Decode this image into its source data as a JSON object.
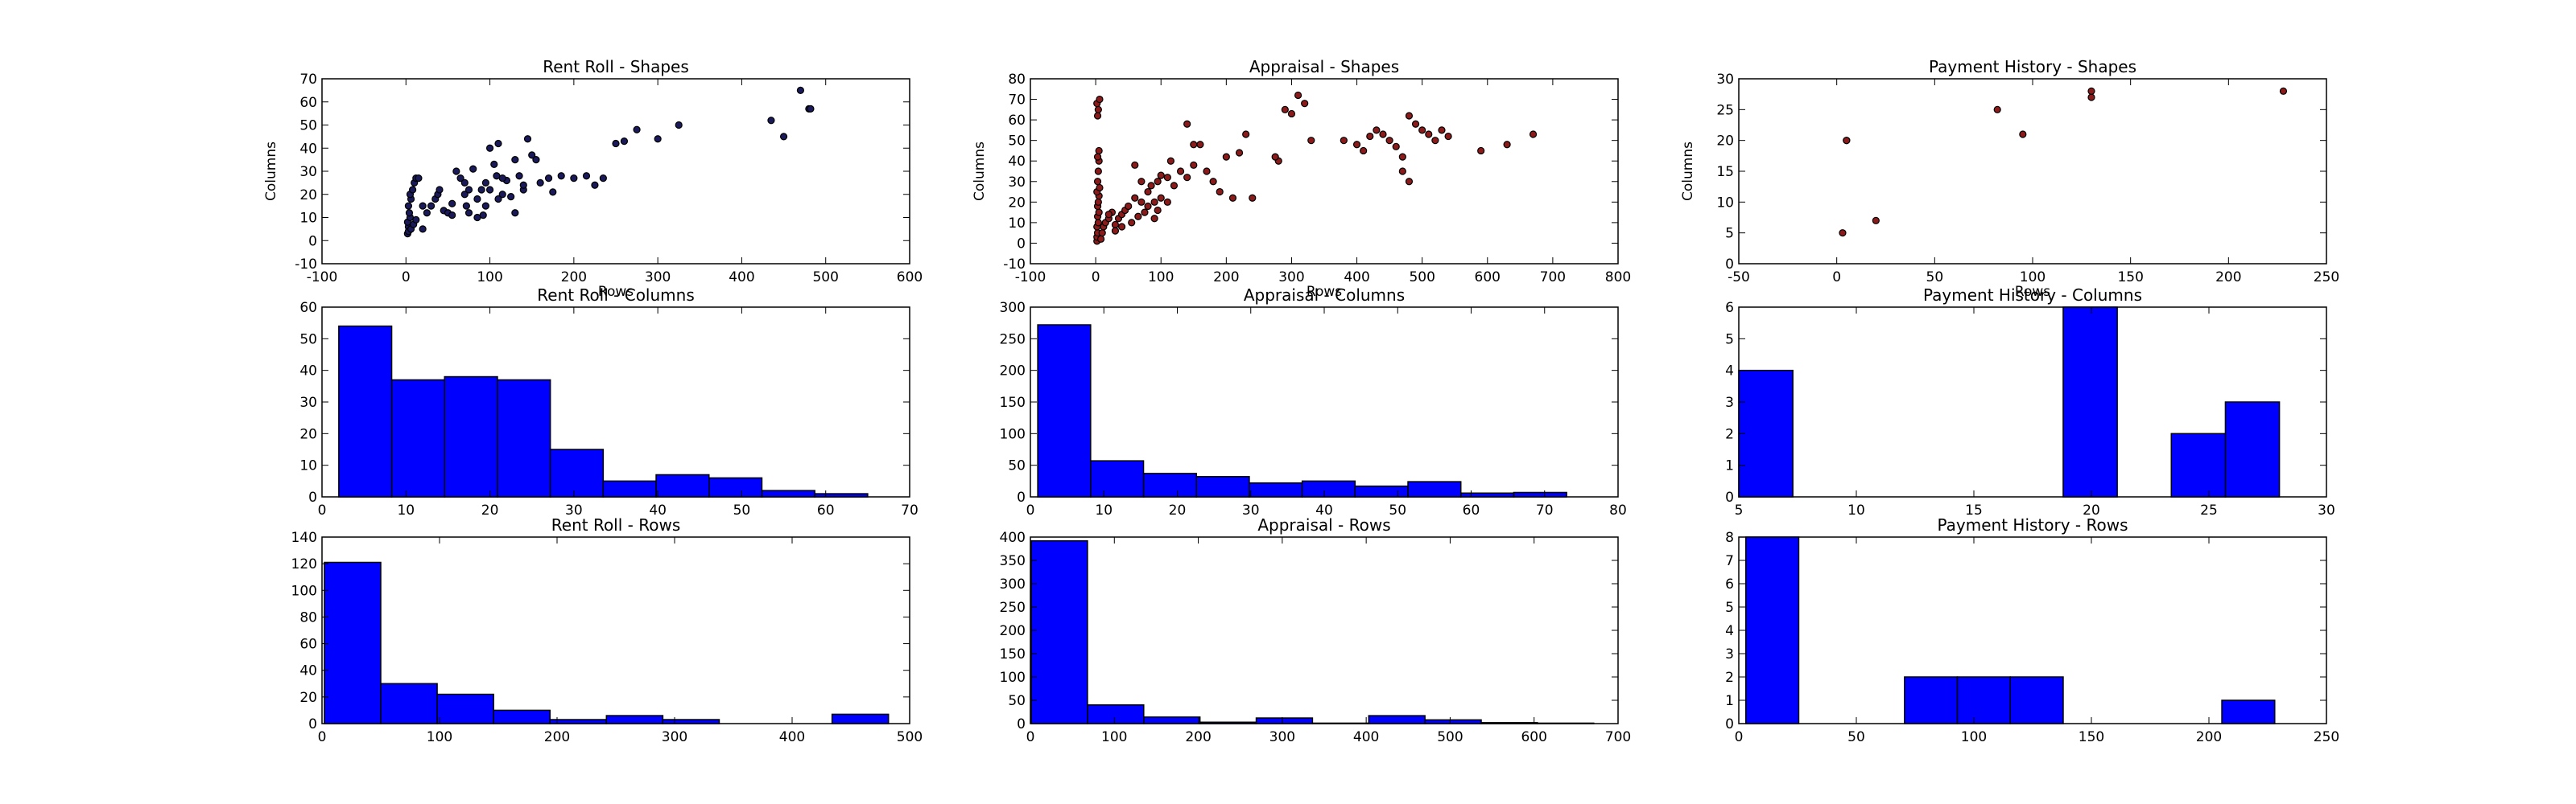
{
  "chart_data": [
    {
      "type": "scatter",
      "title": "Rent Roll - Shapes",
      "xlabel": "Rows",
      "ylabel": "Columns",
      "xlim": [
        -100,
        600
      ],
      "ylim": [
        -10,
        70
      ],
      "xticks": [
        -100,
        0,
        100,
        200,
        300,
        400,
        500,
        600
      ],
      "yticks": [
        -10,
        0,
        10,
        20,
        30,
        40,
        50,
        60,
        70
      ],
      "marker_color": "#1a1a5a",
      "points": [
        [
          2,
          3
        ],
        [
          3,
          6
        ],
        [
          2,
          8
        ],
        [
          5,
          10
        ],
        [
          4,
          12
        ],
        [
          3,
          15
        ],
        [
          6,
          18
        ],
        [
          5,
          20
        ],
        [
          8,
          22
        ],
        [
          10,
          25
        ],
        [
          12,
          27
        ],
        [
          15,
          27
        ],
        [
          3,
          4
        ],
        [
          6,
          5
        ],
        [
          9,
          7
        ],
        [
          12,
          9
        ],
        [
          20,
          5
        ],
        [
          25,
          12
        ],
        [
          30,
          15
        ],
        [
          35,
          18
        ],
        [
          38,
          20
        ],
        [
          45,
          13
        ],
        [
          50,
          12
        ],
        [
          55,
          11
        ],
        [
          60,
          30
        ],
        [
          65,
          27
        ],
        [
          70,
          20
        ],
        [
          72,
          15
        ],
        [
          75,
          22
        ],
        [
          80,
          31
        ],
        [
          85,
          18
        ],
        [
          90,
          22
        ],
        [
          95,
          25
        ],
        [
          100,
          40
        ],
        [
          105,
          33
        ],
        [
          108,
          28
        ],
        [
          110,
          42
        ],
        [
          115,
          20
        ],
        [
          120,
          26
        ],
        [
          130,
          35
        ],
        [
          135,
          28
        ],
        [
          140,
          22
        ],
        [
          145,
          44
        ],
        [
          150,
          37
        ],
        [
          155,
          35
        ],
        [
          160,
          25
        ],
        [
          170,
          27
        ],
        [
          175,
          21
        ],
        [
          185,
          28
        ],
        [
          200,
          27
        ],
        [
          215,
          28
        ],
        [
          225,
          24
        ],
        [
          235,
          27
        ],
        [
          250,
          42
        ],
        [
          260,
          43
        ],
        [
          275,
          48
        ],
        [
          300,
          44
        ],
        [
          325,
          50
        ],
        [
          435,
          52
        ],
        [
          450,
          45
        ],
        [
          470,
          65
        ],
        [
          480,
          57
        ],
        [
          482,
          57
        ],
        [
          130,
          12
        ],
        [
          140,
          24
        ],
        [
          95,
          15
        ],
        [
          85,
          10
        ],
        [
          75,
          12
        ],
        [
          70,
          25
        ],
        [
          100,
          22
        ],
        [
          115,
          27
        ],
        [
          125,
          19
        ],
        [
          20,
          15
        ],
        [
          40,
          22
        ],
        [
          55,
          16
        ],
        [
          92,
          11
        ],
        [
          110,
          18
        ]
      ]
    },
    {
      "type": "scatter",
      "title": "Appraisal - Shapes",
      "xlabel": "Rows",
      "ylabel": "Columns",
      "xlim": [
        -100,
        800
      ],
      "ylim": [
        -10,
        80
      ],
      "xticks": [
        -100,
        0,
        100,
        200,
        300,
        400,
        500,
        600,
        700,
        800
      ],
      "yticks": [
        -10,
        0,
        10,
        20,
        30,
        40,
        50,
        60,
        70,
        80
      ],
      "marker_color": "#8b1a1a",
      "points": [
        [
          2,
          1
        ],
        [
          2,
          3
        ],
        [
          3,
          5
        ],
        [
          2,
          8
        ],
        [
          4,
          10
        ],
        [
          3,
          13
        ],
        [
          5,
          15
        ],
        [
          3,
          18
        ],
        [
          4,
          20
        ],
        [
          5,
          23
        ],
        [
          2,
          25
        ],
        [
          6,
          27
        ],
        [
          3,
          30
        ],
        [
          4,
          35
        ],
        [
          5,
          40
        ],
        [
          3,
          42
        ],
        [
          5,
          45
        ],
        [
          3,
          62
        ],
        [
          4,
          65
        ],
        [
          2,
          68
        ],
        [
          6,
          70
        ],
        [
          8,
          2
        ],
        [
          10,
          5
        ],
        [
          12,
          8
        ],
        [
          15,
          10
        ],
        [
          20,
          12
        ],
        [
          25,
          15
        ],
        [
          30,
          9
        ],
        [
          35,
          12
        ],
        [
          40,
          14
        ],
        [
          45,
          16
        ],
        [
          50,
          18
        ],
        [
          55,
          10
        ],
        [
          60,
          22
        ],
        [
          65,
          13
        ],
        [
          70,
          20
        ],
        [
          75,
          15
        ],
        [
          80,
          25
        ],
        [
          85,
          28
        ],
        [
          90,
          20
        ],
        [
          95,
          30
        ],
        [
          100,
          33
        ],
        [
          110,
          32
        ],
        [
          120,
          28
        ],
        [
          130,
          35
        ],
        [
          140,
          32
        ],
        [
          150,
          38
        ],
        [
          160,
          48
        ],
        [
          170,
          35
        ],
        [
          180,
          30
        ],
        [
          190,
          25
        ],
        [
          200,
          42
        ],
        [
          210,
          22
        ],
        [
          220,
          44
        ],
        [
          230,
          53
        ],
        [
          240,
          22
        ],
        [
          280,
          40
        ],
        [
          290,
          65
        ],
        [
          300,
          63
        ],
        [
          310,
          72
        ],
        [
          320,
          68
        ],
        [
          330,
          50
        ],
        [
          380,
          50
        ],
        [
          400,
          48
        ],
        [
          410,
          45
        ],
        [
          420,
          52
        ],
        [
          430,
          55
        ],
        [
          440,
          53
        ],
        [
          450,
          50
        ],
        [
          460,
          47
        ],
        [
          470,
          42
        ],
        [
          480,
          62
        ],
        [
          490,
          58
        ],
        [
          500,
          55
        ],
        [
          510,
          53
        ],
        [
          520,
          50
        ],
        [
          530,
          55
        ],
        [
          540,
          52
        ],
        [
          590,
          45
        ],
        [
          630,
          48
        ],
        [
          670,
          53
        ],
        [
          140,
          58
        ],
        [
          150,
          48
        ],
        [
          60,
          38
        ],
        [
          70,
          30
        ],
        [
          80,
          18
        ],
        [
          90,
          12
        ],
        [
          30,
          6
        ],
        [
          40,
          8
        ],
        [
          20,
          14
        ],
        [
          470,
          35
        ],
        [
          480,
          30
        ],
        [
          275,
          42
        ],
        [
          100,
          22
        ],
        [
          110,
          20
        ],
        [
          115,
          40
        ],
        [
          95,
          16
        ]
      ]
    },
    {
      "type": "scatter",
      "title": "Payment History - Shapes",
      "xlabel": "Rows",
      "ylabel": "Columns",
      "xlim": [
        -50,
        250
      ],
      "ylim": [
        0,
        30
      ],
      "xticks": [
        -50,
        0,
        50,
        100,
        150,
        200,
        250
      ],
      "yticks": [
        0,
        5,
        10,
        15,
        20,
        25,
        30
      ],
      "marker_color": "#8b1a1a",
      "points": [
        [
          3,
          5
        ],
        [
          5,
          20
        ],
        [
          5,
          20
        ],
        [
          20,
          7
        ],
        [
          82,
          25
        ],
        [
          95,
          21
        ],
        [
          130,
          27
        ],
        [
          130,
          28
        ],
        [
          228,
          28
        ]
      ]
    },
    {
      "type": "bar",
      "title": "Rent Roll - Columns",
      "xlim": [
        0,
        70
      ],
      "ylim": [
        0,
        60
      ],
      "xticks": [
        0,
        10,
        20,
        30,
        40,
        50,
        60,
        70
      ],
      "yticks": [
        0,
        10,
        20,
        30,
        40,
        50,
        60
      ],
      "bar_color": "#0000ff",
      "bins": [
        [
          2,
          8.3,
          54
        ],
        [
          8.3,
          14.6,
          37
        ],
        [
          14.6,
          20.9,
          38
        ],
        [
          20.9,
          27.2,
          37
        ],
        [
          27.2,
          33.5,
          15
        ],
        [
          33.5,
          39.8,
          5
        ],
        [
          39.8,
          46.1,
          7
        ],
        [
          46.1,
          52.4,
          6
        ],
        [
          52.4,
          58.7,
          2
        ],
        [
          58.7,
          65,
          1
        ]
      ]
    },
    {
      "type": "bar",
      "title": "Appraisal - Columns",
      "xlim": [
        0,
        80
      ],
      "ylim": [
        0,
        300
      ],
      "xticks": [
        0,
        10,
        20,
        30,
        40,
        50,
        60,
        70,
        80
      ],
      "yticks": [
        0,
        50,
        100,
        150,
        200,
        250,
        300
      ],
      "bar_color": "#0000ff",
      "bins": [
        [
          1,
          8.2,
          272
        ],
        [
          8.2,
          15.4,
          57
        ],
        [
          15.4,
          22.6,
          37
        ],
        [
          22.6,
          29.8,
          32
        ],
        [
          29.8,
          37,
          22
        ],
        [
          37,
          44.2,
          25
        ],
        [
          44.2,
          51.4,
          17
        ],
        [
          51.4,
          58.6,
          24
        ],
        [
          58.6,
          65.8,
          6
        ],
        [
          65.8,
          73,
          7
        ]
      ]
    },
    {
      "type": "bar",
      "title": "Payment History - Columns",
      "xlim": [
        5,
        30
      ],
      "ylim": [
        0,
        6
      ],
      "xticks": [
        5,
        10,
        15,
        20,
        25,
        30
      ],
      "yticks": [
        0,
        1,
        2,
        3,
        4,
        5,
        6
      ],
      "bar_color": "#0000ff",
      "bins": [
        [
          5,
          7.3,
          4
        ],
        [
          7.3,
          9.6,
          0
        ],
        [
          9.6,
          11.9,
          0
        ],
        [
          11.9,
          14.2,
          0
        ],
        [
          14.2,
          16.5,
          0
        ],
        [
          16.5,
          18.8,
          0
        ],
        [
          18.8,
          21.1,
          6
        ],
        [
          21.1,
          23.4,
          0
        ],
        [
          23.4,
          25.7,
          2
        ],
        [
          25.7,
          28,
          3
        ]
      ]
    },
    {
      "type": "bar",
      "title": "Rent Roll - Rows",
      "xlim": [
        0,
        500
      ],
      "ylim": [
        0,
        140
      ],
      "xticks": [
        0,
        100,
        200,
        300,
        400,
        500
      ],
      "yticks": [
        0,
        20,
        40,
        60,
        80,
        100,
        120,
        140
      ],
      "bar_color": "#0000ff",
      "bins": [
        [
          2,
          50,
          121
        ],
        [
          50,
          98,
          30
        ],
        [
          98,
          146,
          22
        ],
        [
          146,
          194,
          10
        ],
        [
          194,
          242,
          3
        ],
        [
          242,
          290,
          6
        ],
        [
          290,
          338,
          3
        ],
        [
          338,
          386,
          0
        ],
        [
          386,
          434,
          0
        ],
        [
          434,
          482,
          7
        ]
      ]
    },
    {
      "type": "bar",
      "title": "Appraisal - Rows",
      "xlim": [
        0,
        700
      ],
      "ylim": [
        0,
        400
      ],
      "xticks": [
        0,
        100,
        200,
        300,
        400,
        500,
        600,
        700
      ],
      "yticks": [
        0,
        50,
        100,
        150,
        200,
        250,
        300,
        350,
        400
      ],
      "bar_color": "#0000ff",
      "bins": [
        [
          1,
          68,
          392
        ],
        [
          68,
          135,
          40
        ],
        [
          135,
          202,
          14
        ],
        [
          202,
          269,
          3
        ],
        [
          269,
          336,
          12
        ],
        [
          336,
          403,
          1
        ],
        [
          403,
          470,
          17
        ],
        [
          470,
          537,
          8
        ],
        [
          537,
          604,
          2
        ],
        [
          604,
          671,
          1
        ]
      ]
    },
    {
      "type": "bar",
      "title": "Payment History - Rows",
      "xlim": [
        0,
        250
      ],
      "ylim": [
        0,
        8
      ],
      "xticks": [
        0,
        50,
        100,
        150,
        200,
        250
      ],
      "yticks": [
        0,
        1,
        2,
        3,
        4,
        5,
        6,
        7,
        8
      ],
      "bar_color": "#0000ff",
      "bins": [
        [
          3,
          25.5,
          8
        ],
        [
          25.5,
          48,
          0
        ],
        [
          48,
          70.5,
          0
        ],
        [
          70.5,
          93,
          2
        ],
        [
          93,
          115.5,
          2
        ],
        [
          115.5,
          138,
          2
        ],
        [
          138,
          160.5,
          0
        ],
        [
          160.5,
          183,
          0
        ],
        [
          183,
          205.5,
          0
        ],
        [
          205.5,
          228,
          1
        ]
      ]
    }
  ]
}
